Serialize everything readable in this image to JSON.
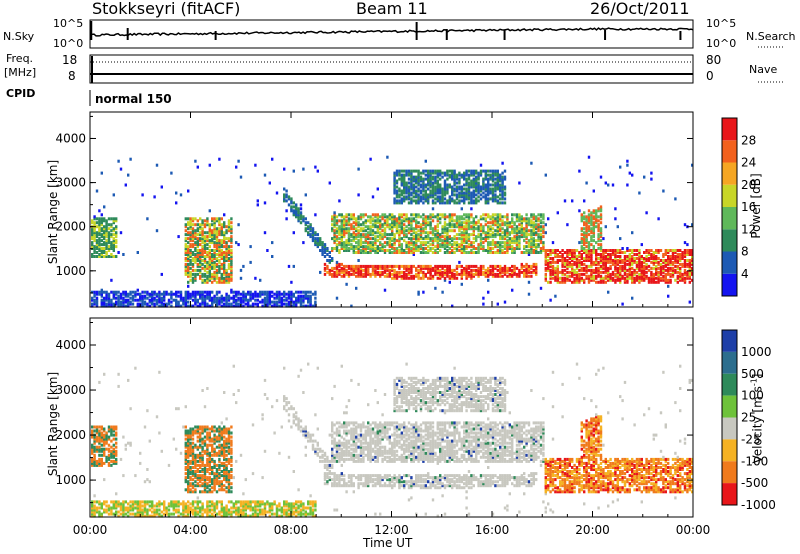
{
  "header": {
    "station": "Stokkseyri (fitACF)",
    "beam": "Beam 11",
    "date": "26/Oct/2011"
  },
  "top_panels": {
    "nsky_label": "N.Sky",
    "nsky_ticks": [
      "10^5",
      "10^0"
    ],
    "nsearch_ticks": [
      "10^5",
      "10^0"
    ],
    "nsearch_label": "N.Search",
    "freq_label_1": "Freq.",
    "freq_label_2": "[MHz]",
    "freq_ticks": [
      "18",
      "8"
    ],
    "nave_ticks": [
      "80",
      "0"
    ],
    "nave_label": "Nave",
    "cpid_label": "CPID",
    "cpid_value": "normal 150"
  },
  "chart_data": [
    {
      "type": "heatmap",
      "name": "power",
      "ylabel": "Slant Range [km]",
      "xlabel": "",
      "yticks": [
        "1000",
        "2000",
        "3000",
        "4000"
      ],
      "ylim": [
        180,
        4600
      ],
      "colorbar_label": "Power [dB]",
      "colorbar_ticks": [
        "4",
        "8",
        "12",
        "16",
        "20",
        "24",
        "28"
      ],
      "colors": [
        "#1414f0",
        "#1d5ab4",
        "#2e8a5a",
        "#5fb85a",
        "#c8d628",
        "#f5a623",
        "#f2611d",
        "#e8161a"
      ]
    },
    {
      "type": "heatmap",
      "name": "velocity",
      "ylabel": "Slant Range [km]",
      "xlabel": "Time UT",
      "yticks": [
        "1000",
        "2000",
        "3000",
        "4000"
      ],
      "ylim": [
        180,
        4600
      ],
      "xticks": [
        "00:00",
        "04:00",
        "08:00",
        "12:00",
        "16:00",
        "20:00",
        "00:00"
      ],
      "xlim": [
        0,
        24
      ],
      "colorbar_label": "Velocity [m s",
      "colorbar_label_sup": "-1",
      "colorbar_label_end": "]",
      "colorbar_ticks": [
        "1000",
        "500",
        "100",
        "25",
        "-25",
        "-100",
        "-500",
        "-1000"
      ],
      "colors": [
        "#1e3fa8",
        "#2c6e8e",
        "#2e8a5a",
        "#6ec23a",
        "#c8c8c0",
        "#f5b223",
        "#f07a1c",
        "#e8161a"
      ]
    }
  ]
}
